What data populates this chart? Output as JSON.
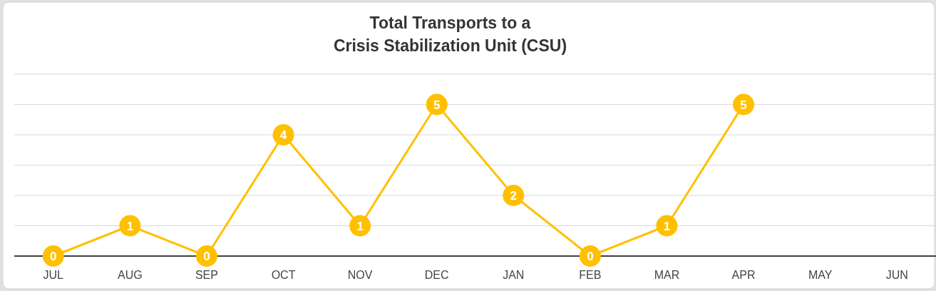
{
  "chart_data": {
    "type": "line",
    "title": "Total Transports to a\nCrisis Stabilization Unit (CSU)",
    "categories": [
      "JUL",
      "AUG",
      "SEP",
      "OCT",
      "NOV",
      "DEC",
      "JAN",
      "FEB",
      "MAR",
      "APR",
      "MAY",
      "JUN"
    ],
    "series": [
      {
        "color": "#ffc000",
        "values": [
          0,
          1,
          0,
          4,
          1,
          5,
          2,
          0,
          1,
          5,
          null,
          null
        ]
      }
    ],
    "ylim": [
      0,
      6
    ],
    "yticks": [
      {
        "value": 0,
        "label": null
      },
      {
        "value": 1,
        "label": null
      },
      {
        "value": 2,
        "label": null
      },
      {
        "value": 3,
        "label": null
      },
      {
        "value": 4,
        "label": null
      },
      {
        "value": 5,
        "label": null
      },
      {
        "value": 6,
        "label": null
      }
    ],
    "tick_labels": "x",
    "grid": "y",
    "marker": "circle",
    "data_labels": true
  }
}
